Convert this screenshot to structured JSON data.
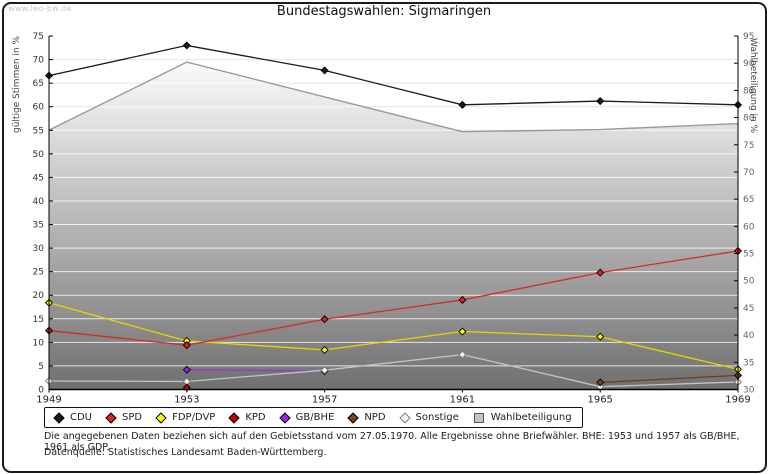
{
  "watermark": "www.leo-bw.de",
  "title": "Bundestagswahlen: Sigmaringen",
  "chart_data": {
    "type": "line",
    "categories": [
      "1949",
      "1953",
      "1957",
      "1961",
      "1965",
      "1969"
    ],
    "left_axis": {
      "label": "gültige Stimmen in %",
      "min": 0,
      "max": 75,
      "step": 5
    },
    "right_axis": {
      "label": "Wahlbeteiligung in %",
      "min": 30,
      "max": 95,
      "step": 5
    },
    "grid": true,
    "legend_position": "bottom",
    "series": [
      {
        "name": "CDU",
        "color": "#1a1a1a",
        "marker_fill": "#1a1a1a",
        "values": [
          66.6,
          73.0,
          67.7,
          60.4,
          61.2,
          60.4
        ]
      },
      {
        "name": "SPD",
        "color": "#d22b2b",
        "marker_fill": "#e02020",
        "values": [
          12.5,
          9.4,
          14.9,
          19.0,
          24.8,
          29.4
        ]
      },
      {
        "name": "FDP/DVP",
        "color": "#e3d800",
        "marker_fill": "#ffff00",
        "values": [
          18.4,
          10.3,
          8.4,
          12.3,
          11.2,
          4.3
        ]
      },
      {
        "name": "KPD",
        "color": "#a50000",
        "marker_fill": "#c00000",
        "values": [
          null,
          0.4,
          null,
          null,
          null,
          null
        ]
      },
      {
        "name": "GB/BHE",
        "color": "#9a35cf",
        "marker_fill": "#a020f0",
        "values": [
          null,
          4.2,
          3.9,
          null,
          null,
          null
        ]
      },
      {
        "name": "NPD",
        "color": "#6e3b1e",
        "marker_fill": "#7a4420",
        "values": [
          null,
          null,
          null,
          null,
          1.5,
          3.0
        ]
      },
      {
        "name": "Sonstige",
        "color": "#c4c4c4",
        "marker_fill": "#f7f7f7",
        "marker_stroke": "#777777",
        "values": [
          1.8,
          1.7,
          4.1,
          7.4,
          0.6,
          1.6
        ]
      }
    ],
    "turnout": {
      "name": "Wahlbeteiligung",
      "axis": "right",
      "line_color": "#999999",
      "area_top": "#fbfbfb",
      "area_bottom": "#707070",
      "legend_fill": "#c4c4c4",
      "legend_border": "#555555",
      "values": [
        77.7,
        90.2,
        83.8,
        77.4,
        77.8,
        78.9
      ]
    }
  },
  "footnotes": {
    "line1": "Die angegebenen Daten beziehen sich auf den Gebietsstand vom 27.05.1970. Alle Ergebnisse ohne Briefwähler. BHE: 1953 und 1957 als GB/BHE, 1961 als GDP.",
    "line2": "Datenquelle: Statistisches Landesamt Baden-Württemberg."
  }
}
